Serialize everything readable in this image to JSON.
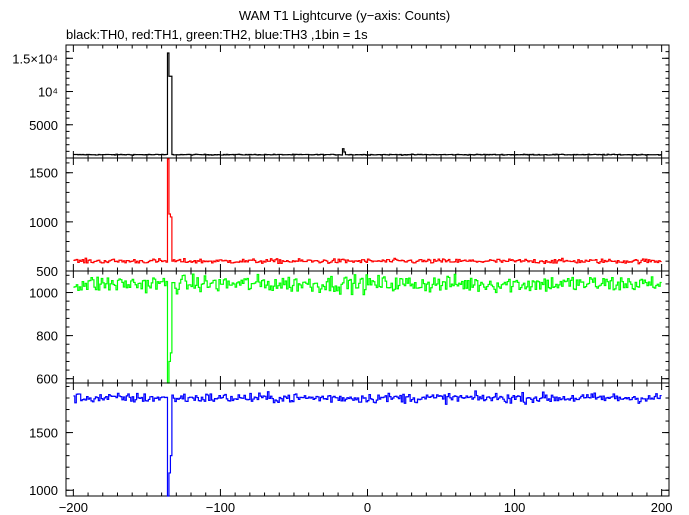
{
  "chart_data": {
    "type": "line",
    "title": "WAM T1 Lightcurve (y−axis: Counts)",
    "subtitle": "black:TH0, red:TH1, green:TH2, blue:TH3 ,1bin = 1s",
    "x_range": [
      -205,
      205
    ],
    "x_ticks": [
      -200,
      -100,
      0,
      100,
      200
    ],
    "x_tick_labels": [
      "−200",
      "−100",
      "0",
      "100",
      "200"
    ],
    "panels": [
      {
        "name": "TH0",
        "color": "#000000",
        "y_range": [
          0,
          17000
        ],
        "y_ticks": [
          5000,
          10000,
          15000
        ],
        "y_tick_labels": [
          "5000",
          "10⁴",
          "1.5×10⁴"
        ],
        "baseline": 500,
        "noise": 60,
        "spikes": [
          {
            "x": -136,
            "y": 15800
          },
          {
            "x": -135,
            "y": 12300
          },
          {
            "x": -134,
            "y": 12300
          },
          {
            "x": -17,
            "y": 1400
          },
          {
            "x": -16,
            "y": 900
          }
        ]
      },
      {
        "name": "TH1",
        "color": "#ff0000",
        "y_range": [
          500,
          1650
        ],
        "y_ticks": [
          500,
          1000,
          1500
        ],
        "y_tick_labels": [
          "500",
          "1000",
          "1500"
        ],
        "baseline": 600,
        "noise": 22,
        "spikes": [
          {
            "x": -136,
            "y": 1640
          },
          {
            "x": -135,
            "y": 1080
          },
          {
            "x": -134,
            "y": 1050
          }
        ]
      },
      {
        "name": "TH2",
        "color": "#00ff00",
        "y_range": [
          580,
          1100
        ],
        "y_ticks": [
          600,
          800,
          1000
        ],
        "y_tick_labels": [
          "600",
          "800",
          "1000"
        ],
        "baseline": 1040,
        "noise": 38,
        "spikes": [
          {
            "x": -136,
            "y": 580
          },
          {
            "x": -135,
            "y": 680
          },
          {
            "x": -134,
            "y": 720
          }
        ]
      },
      {
        "name": "TH3",
        "color": "#0000ff",
        "y_range": [
          950,
          1930
        ],
        "y_ticks": [
          1000,
          1500
        ],
        "y_tick_labels": [
          "1000",
          "1500"
        ],
        "baseline": 1800,
        "noise": 40,
        "spikes": [
          {
            "x": -136,
            "y": 950
          },
          {
            "x": -135,
            "y": 1150
          },
          {
            "x": -134,
            "y": 1300
          }
        ]
      }
    ]
  }
}
